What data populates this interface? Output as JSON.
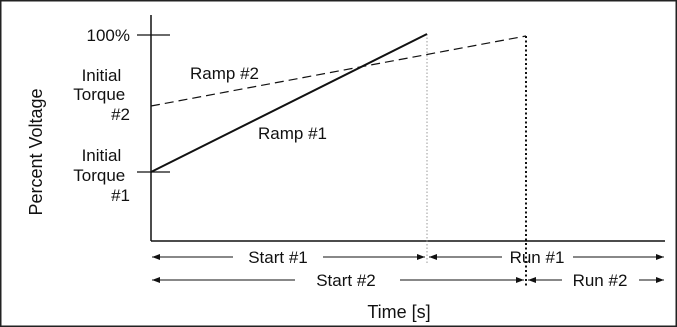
{
  "chart_data": {
    "type": "line",
    "title": "",
    "xlabel": "Time [s]",
    "ylabel": "Percent Voltage",
    "y_ticks": [
      "100%"
    ],
    "y_levels": [
      {
        "name": "initial-torque-2",
        "label_lines": [
          "Initial",
          "Torque",
          "#2"
        ],
        "value": 60
      },
      {
        "name": "initial-torque-1",
        "label_lines": [
          "Initial",
          "Torque",
          "#1"
        ],
        "value": 30
      }
    ],
    "series": [
      {
        "name": "Ramp #1",
        "style": "solid",
        "x": [
          0,
          1
        ],
        "y": [
          30,
          100
        ]
      },
      {
        "name": "Ramp #2",
        "style": "dashed",
        "x": [
          0,
          1.4
        ],
        "y": [
          60,
          100
        ]
      }
    ],
    "phase_markers": [
      {
        "x": 1.0,
        "style": "dotted-light"
      },
      {
        "x": 1.4,
        "style": "dotted-bold"
      }
    ],
    "spans": [
      {
        "label": "Start #1",
        "from": 0,
        "to": 1.0,
        "row": 1
      },
      {
        "label": "Run #1",
        "from": 1.0,
        "to": "end",
        "row": 1
      },
      {
        "label": "Start #2",
        "from": 0,
        "to": 1.4,
        "row": 2
      },
      {
        "label": "Run #2",
        "from": 1.4,
        "to": "end",
        "row": 2
      }
    ],
    "grid": false,
    "legend": "none",
    "colors": {
      "line": "#111111",
      "marker_light": "#999999",
      "frame": "#222222"
    }
  }
}
